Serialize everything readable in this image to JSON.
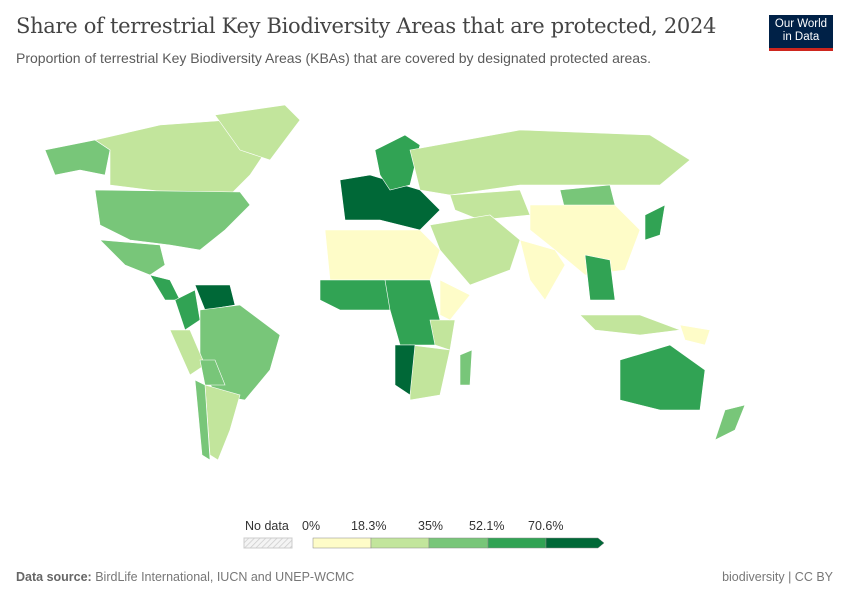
{
  "header": {
    "title": "Share of terrestrial Key Biodiversity Areas that are protected, 2024",
    "subtitle": "Proportion of terrestrial Key Biodiversity Areas (KBAs) that are covered by designated protected areas.",
    "logo": "Our World in Data"
  },
  "chart_data": {
    "type": "choropleth",
    "year": "2024",
    "unit": "%",
    "legend": {
      "no_data_label": "No data",
      "bins": [
        "0%",
        "18.3%",
        "35%",
        "52.1%",
        "70.6%"
      ],
      "colors": [
        "#fefcc8",
        "#c2e59c",
        "#78c679",
        "#31a354",
        "#006837"
      ],
      "no_data_pattern": "hatched-grey"
    },
    "regions": [
      {
        "name": "Canada",
        "bin": 1
      },
      {
        "name": "United States",
        "bin": 2
      },
      {
        "name": "Alaska",
        "bin": 2
      },
      {
        "name": "Greenland",
        "bin": 1
      },
      {
        "name": "Mexico",
        "bin": 2
      },
      {
        "name": "Central America",
        "bin": 3
      },
      {
        "name": "Venezuela",
        "bin": 4
      },
      {
        "name": "Colombia",
        "bin": 3
      },
      {
        "name": "Brazil",
        "bin": 2
      },
      {
        "name": "Peru",
        "bin": 1
      },
      {
        "name": "Bolivia",
        "bin": 2
      },
      {
        "name": "Argentina",
        "bin": 1
      },
      {
        "name": "Chile",
        "bin": 2
      },
      {
        "name": "Western Europe",
        "bin": 4
      },
      {
        "name": "Scandinavia",
        "bin": 3
      },
      {
        "name": "Russia",
        "bin": 1
      },
      {
        "name": "Kazakhstan",
        "bin": 1
      },
      {
        "name": "Mongolia",
        "bin": 2
      },
      {
        "name": "China",
        "bin": 0
      },
      {
        "name": "India",
        "bin": 0
      },
      {
        "name": "Japan",
        "bin": 3
      },
      {
        "name": "Middle East",
        "bin": 1
      },
      {
        "name": "North Africa",
        "bin": 0
      },
      {
        "name": "West Africa",
        "bin": 3
      },
      {
        "name": "Central Africa",
        "bin": 3
      },
      {
        "name": "East Africa",
        "bin": 1
      },
      {
        "name": "Horn of Africa",
        "bin": 0
      },
      {
        "name": "Southern Africa",
        "bin": 1
      },
      {
        "name": "Namibia",
        "bin": 4
      },
      {
        "name": "Madagascar",
        "bin": 2
      },
      {
        "name": "Southeast Asia",
        "bin": 3
      },
      {
        "name": "Indonesia",
        "bin": 1
      },
      {
        "name": "Papua New Guinea",
        "bin": 0
      },
      {
        "name": "Australia",
        "bin": 3
      },
      {
        "name": "New Zealand",
        "bin": 2
      }
    ]
  },
  "footer": {
    "source_label": "Data source:",
    "source": "BirdLife International, IUCN and UNEP-WCMC",
    "license": "biodiversity | CC BY"
  }
}
